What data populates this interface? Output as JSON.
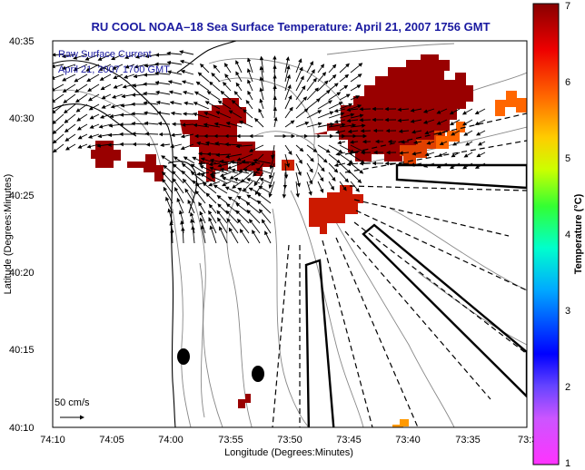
{
  "title": "RU COOL  NOAA–18  Sea Surface Temperature:  April 21, 2007 1756 GMT",
  "annotation": {
    "line1": "Raw Surface Current",
    "line2": "April 21, 2007 1700 GMT"
  },
  "scale_label": "50 cm/s",
  "x_axis": {
    "label": "Longitude (Degrees:Minutes)",
    "ticks": [
      "74:10",
      "74:05",
      "74:00",
      "73:55",
      "73:50",
      "73:45",
      "73:40",
      "73:35",
      "73:3"
    ]
  },
  "y_axis": {
    "label": "Latitude (Degrees:Minutes)",
    "ticks": [
      "40:35",
      "40:30",
      "40:25",
      "40:20",
      "40:15",
      "40:10"
    ]
  },
  "colorbar": {
    "label": "Temperature (°C)",
    "ticks": [
      "7",
      "6",
      "5",
      "4",
      "3",
      "2",
      "1"
    ],
    "colors": [
      "#ff33ff",
      "#9966ff",
      "#0000ff",
      "#00ccff",
      "#00ffcc",
      "#33ff33",
      "#ccff00",
      "#ffcc00",
      "#ff6600",
      "#ee0000",
      "#880000"
    ]
  },
  "map_colors": {
    "land_outline": "#000000",
    "bathymetry": "#888888",
    "sst_hot": "#990000",
    "sst_mid": "#cc1a00",
    "sst_warm": "#ff6600",
    "markers": "#000000"
  },
  "chart_data": {
    "type": "map",
    "xlim": [
      "74:10",
      "73:30"
    ],
    "ylim": [
      "40:10",
      "40:35"
    ],
    "legend": "top-left"
  }
}
